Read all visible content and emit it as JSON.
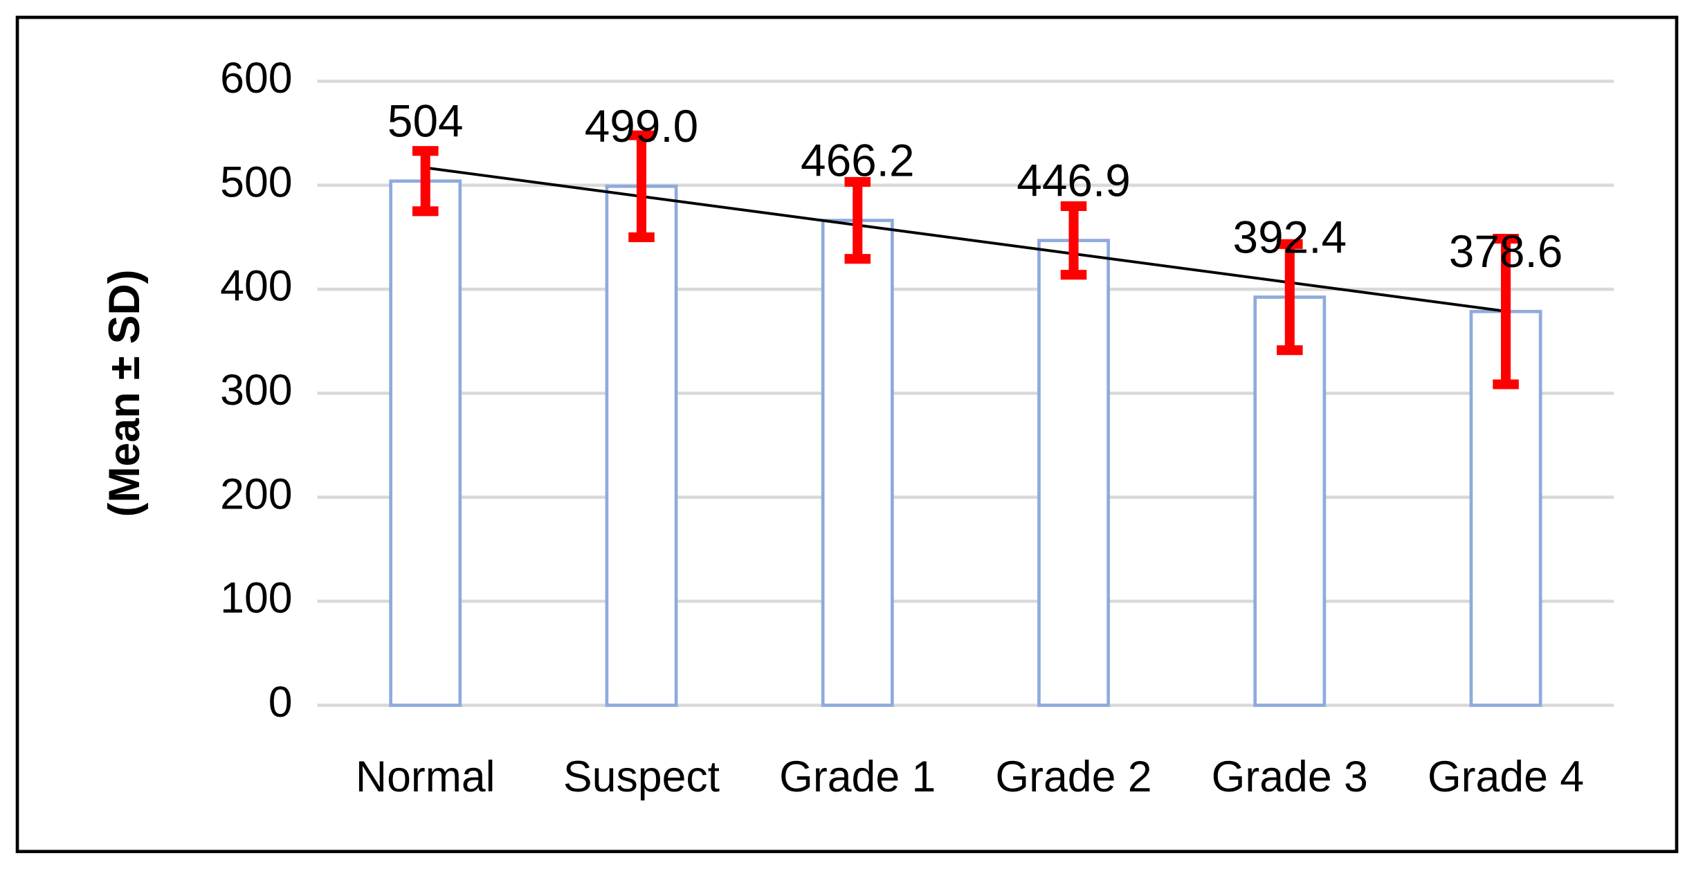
{
  "chart_data": {
    "type": "bar",
    "y_label": "(Mean ± SD)",
    "categories": [
      "Normal",
      "Suspect",
      "Grade 1",
      "Grade 2",
      "Grade 3",
      "Grade 4"
    ],
    "values": [
      504,
      499.0,
      466.2,
      446.9,
      392.4,
      378.6
    ],
    "value_labels": [
      "504",
      "499.0",
      "466.2",
      "446.9",
      "392.4",
      "378.6"
    ],
    "errors": [
      29,
      49,
      37,
      33,
      51,
      70
    ],
    "color": "#8faadc",
    "error_color": "#ff0000",
    "trendline": true,
    "ylim": [
      0,
      600
    ],
    "yticks": [
      0,
      100,
      200,
      300,
      400,
      500,
      600
    ],
    "grid": true
  }
}
